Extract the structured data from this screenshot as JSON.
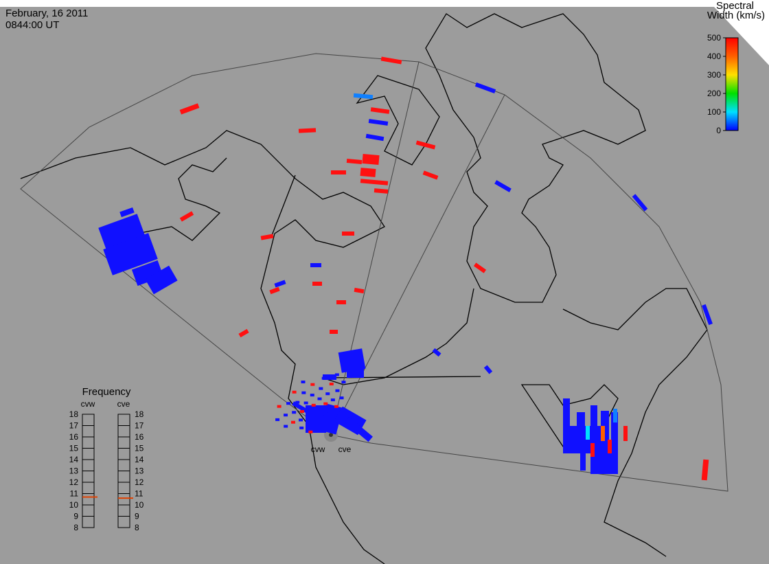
{
  "header": {
    "date": "February, 16 2011",
    "time": "0844:00 UT"
  },
  "colorbar": {
    "title": [
      "Spectral",
      "Width (km/s)"
    ],
    "lim": [
      0,
      500
    ],
    "ticks": [
      0,
      100,
      200,
      300,
      400,
      500
    ]
  },
  "frequency": {
    "title": "Frequency",
    "lim": [
      8,
      18
    ],
    "ticks": [
      8,
      9,
      10,
      11,
      12,
      13,
      14,
      15,
      16,
      17,
      18
    ],
    "radars": [
      {
        "name": "cvw",
        "value": 10.7
      },
      {
        "name": "cve",
        "value": 10.6
      }
    ]
  }
}
